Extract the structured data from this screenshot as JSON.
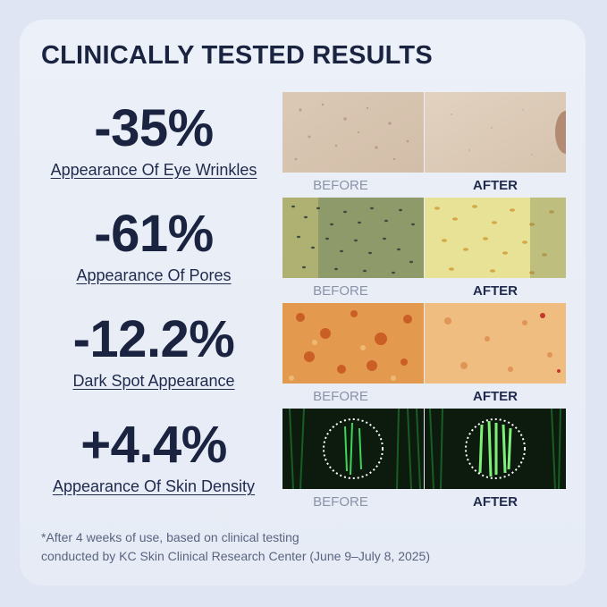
{
  "headline": "CLINICALLY TESTED RESULTS",
  "results": [
    {
      "value": "-35%",
      "label": "Appearance Of Eye Wrinkles",
      "before": "BEFORE",
      "after": "AFTER"
    },
    {
      "value": "-61%",
      "label": "Appearance Of Pores",
      "before": "BEFORE",
      "after": "AFTER"
    },
    {
      "value": "-12.2%",
      "label": "Dark Spot Appearance",
      "before": "BEFORE",
      "after": "AFTER"
    },
    {
      "value": "+4.4%",
      "label": "Appearance Of Skin Density",
      "before": "BEFORE",
      "after": "AFTER"
    }
  ],
  "footnote": {
    "line1": "*After 4 weeks of use, based on clinical testing",
    "line2": "conducted by KC Skin Clinical Research Center (June 9–July 8, 2025)"
  },
  "colors": {
    "text": "#1a2340",
    "muted": "#8a93a8",
    "background": "#dfe5f2"
  }
}
